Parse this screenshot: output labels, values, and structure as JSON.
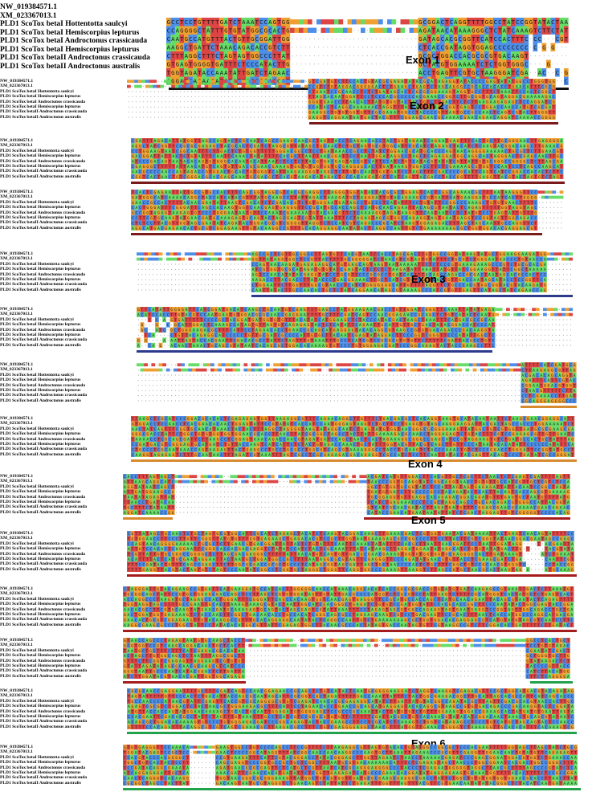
{
  "sequences": {
    "nw": "NW_019384571.1",
    "xm": "XM_023367013.1",
    "s1": "PLD1 ScoTox betaI Hottentotta saulcyi",
    "s2": "PLD1 ScoTox betaI Hemiscorpius lepturus",
    "s3": "PLD1 ScoTox betaI Androctonus crassicauda",
    "s4": "PLD1 ScoTox betaI Hemiscorpius lepturus",
    "s5": "PLD1 ScoTox betaII Androctonus crassicauda",
    "s6": "PLD1 ScoTox betaII Androctonus australis"
  },
  "exons": {
    "e1": "Exon 1",
    "e2": "Exon 2",
    "e3": "Exon 3",
    "e4": "Exon 4",
    "e5": "Exon 5",
    "e6": "Exon 6"
  },
  "colors": {
    "A": "#66dd66",
    "T": "#dd4444",
    "C": "#4d8ee8",
    "G": "#f0a030",
    "gap": "#ffffff",
    "exon1": "#111111",
    "exon2": "#7a1a1a",
    "exon3": "#2c3a8c",
    "exon4": "#d88a2e",
    "exon5": "#a51c1c",
    "exon6": "#22a24a"
  }
}
